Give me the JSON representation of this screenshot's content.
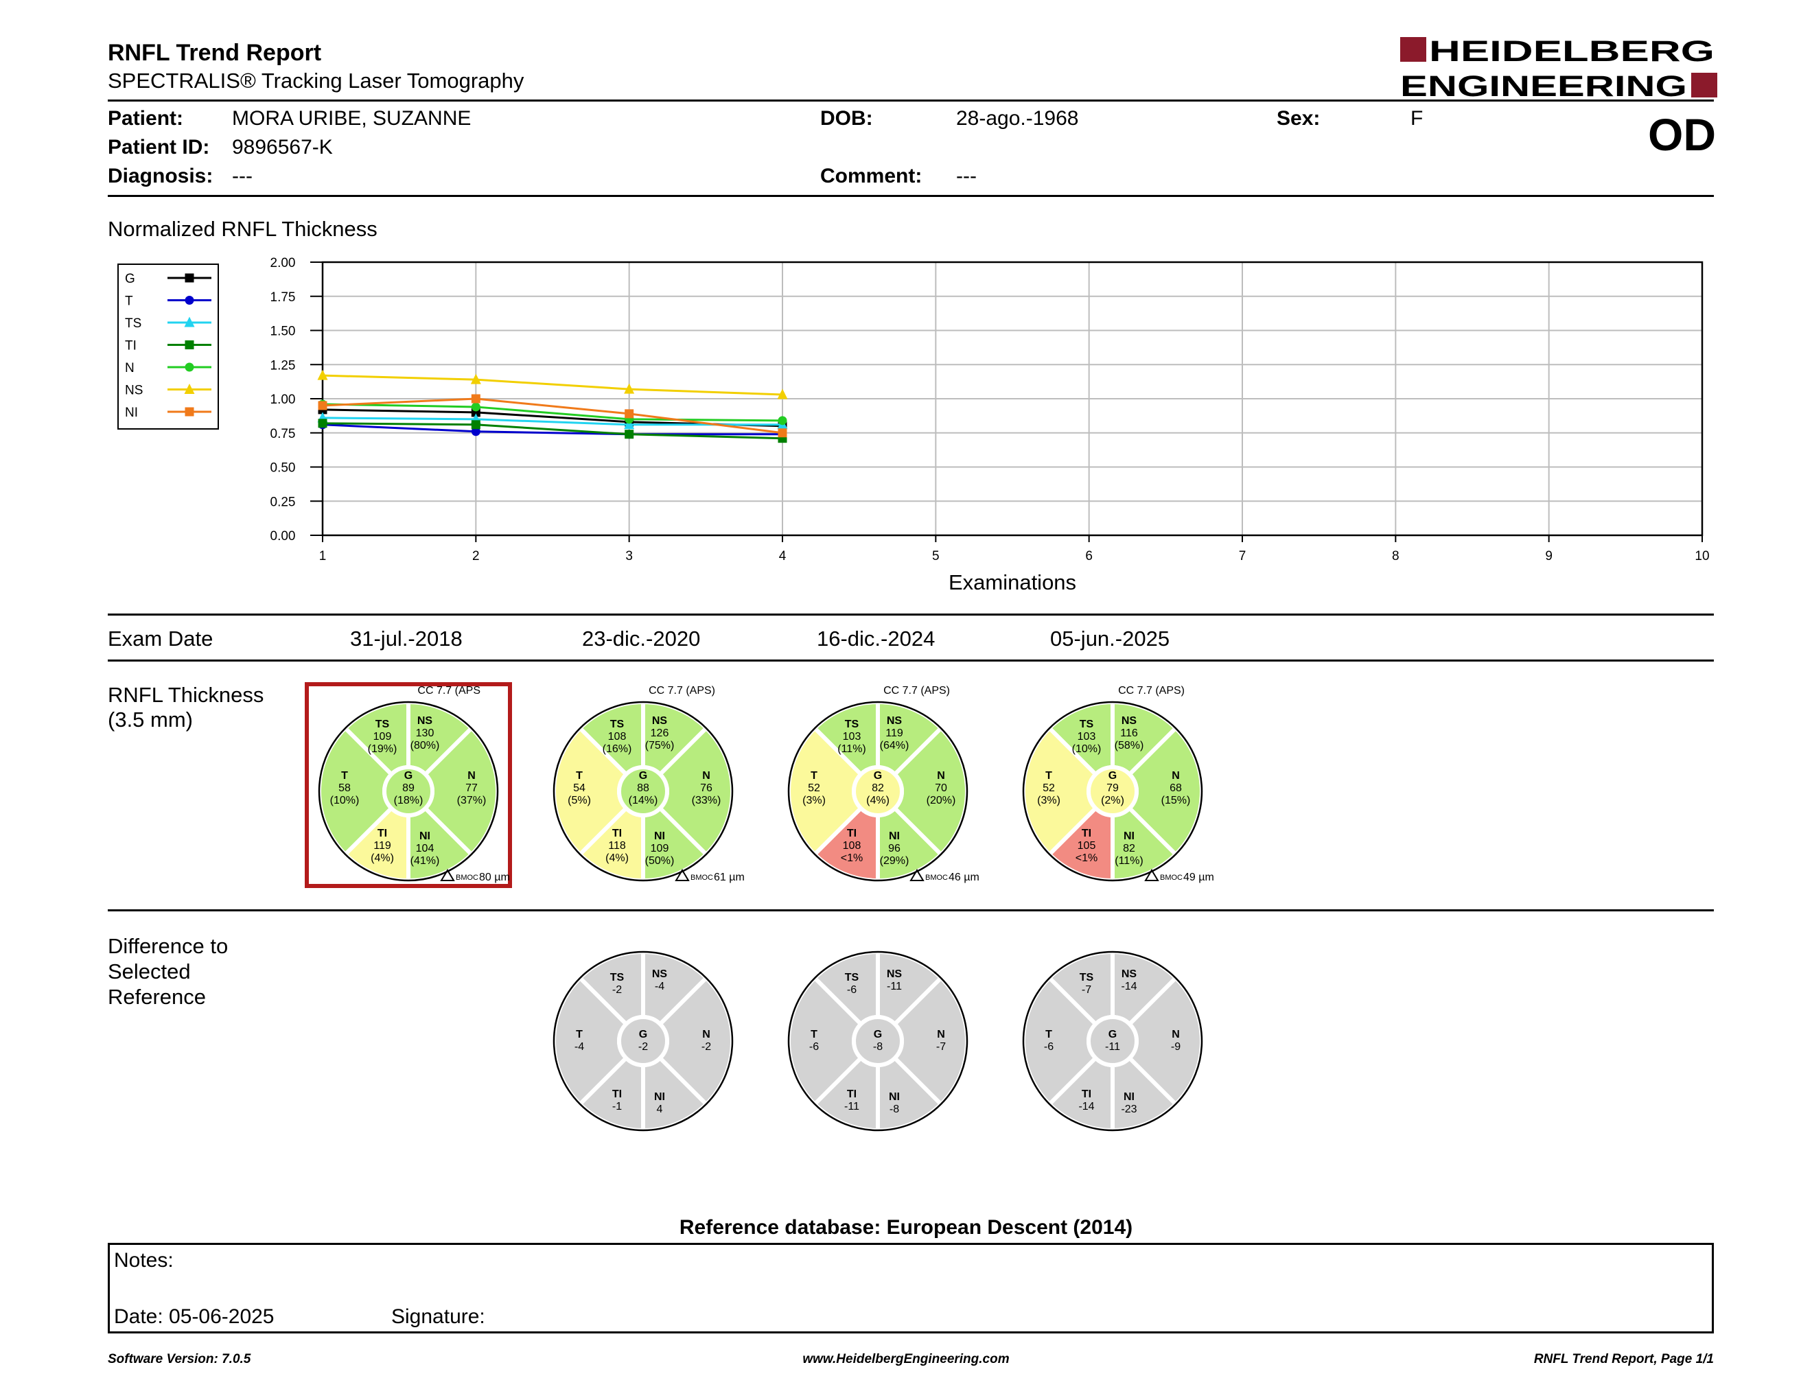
{
  "header": {
    "title": "RNFL Trend Report",
    "subtitle": "SPECTRALIS® Tracking Laser Tomography",
    "logo": {
      "line1": "HEIDELBERG",
      "line2": "ENGINEERING",
      "accent_color": "#8b1a2b"
    },
    "eye": "OD"
  },
  "patient": {
    "patient_label": "Patient:",
    "patient_value": "MORA URIBE, SUZANNE",
    "id_label": "Patient ID:",
    "id_value": "9896567-K",
    "diagnosis_label": "Diagnosis:",
    "diagnosis_value": "---",
    "dob_label": "DOB:",
    "dob_value": "28-ago.-1968",
    "comment_label": "Comment:",
    "comment_value": "---",
    "sex_label": "Sex:",
    "sex_value": "F"
  },
  "chart_section_title": "Normalized RNFL Thickness",
  "chart_data": {
    "type": "line",
    "title": "",
    "xlabel": "Examinations",
    "ylabel": "",
    "x": [
      1,
      2,
      3,
      4
    ],
    "xlim": [
      1,
      10
    ],
    "ylim": [
      0,
      2
    ],
    "xticks": [
      "1",
      "2",
      "3",
      "4",
      "5",
      "6",
      "7",
      "8",
      "9",
      "10"
    ],
    "yticks": [
      "0.00",
      "0.25",
      "0.50",
      "0.75",
      "1.00",
      "1.25",
      "1.50",
      "1.75",
      "2.00"
    ],
    "grid": true,
    "legend": "left",
    "series": [
      {
        "name": "G",
        "color": "#000000",
        "marker": "square",
        "values": [
          0.92,
          0.9,
          0.83,
          0.8
        ]
      },
      {
        "name": "T",
        "color": "#0000cc",
        "marker": "circle",
        "values": [
          0.81,
          0.76,
          0.74,
          0.74
        ]
      },
      {
        "name": "TS",
        "color": "#22d3f0",
        "marker": "triangle",
        "values": [
          0.86,
          0.85,
          0.81,
          0.81
        ]
      },
      {
        "name": "TI",
        "color": "#008000",
        "marker": "square",
        "values": [
          0.82,
          0.81,
          0.74,
          0.71
        ]
      },
      {
        "name": "N",
        "color": "#22cc22",
        "marker": "circle",
        "values": [
          0.96,
          0.94,
          0.85,
          0.84
        ]
      },
      {
        "name": "NS",
        "color": "#f2cf00",
        "marker": "triangle",
        "values": [
          1.17,
          1.14,
          1.07,
          1.03
        ]
      },
      {
        "name": "NI",
        "color": "#f07a1a",
        "marker": "square",
        "values": [
          0.95,
          1.0,
          0.89,
          0.75
        ]
      }
    ]
  },
  "exam_date_label": "Exam Date",
  "thickness_label": [
    "RNFL Thickness",
    "(3.5 mm)"
  ],
  "difference_label": [
    "Difference to",
    "Selected",
    "Reference"
  ],
  "exams": [
    {
      "date": "31-jul.-2018",
      "cc": "CC 7.7 (APS",
      "bmoc": "80 µm",
      "selected": true,
      "sectors": {
        "TS": {
          "value": "109",
          "pct": "(19%)",
          "color": "green"
        },
        "NS": {
          "value": "130",
          "pct": "(80%)",
          "color": "green"
        },
        "T": {
          "value": "58",
          "pct": "(10%)",
          "color": "green"
        },
        "G": {
          "value": "89",
          "pct": "(18%)",
          "color": "green"
        },
        "N": {
          "value": "77",
          "pct": "(37%)",
          "color": "green"
        },
        "TI": {
          "value": "119",
          "pct": "(4%)",
          "color": "yellow"
        },
        "NI": {
          "value": "104",
          "pct": "(41%)",
          "color": "green"
        }
      }
    },
    {
      "date": "23-dic.-2020",
      "cc": "CC 7.7 (APS)",
      "bmoc": "61 µm",
      "selected": false,
      "sectors": {
        "TS": {
          "value": "108",
          "pct": "(16%)",
          "color": "green"
        },
        "NS": {
          "value": "126",
          "pct": "(75%)",
          "color": "green"
        },
        "T": {
          "value": "54",
          "pct": "(5%)",
          "color": "yellow"
        },
        "G": {
          "value": "88",
          "pct": "(14%)",
          "color": "green"
        },
        "N": {
          "value": "76",
          "pct": "(33%)",
          "color": "green"
        },
        "TI": {
          "value": "118",
          "pct": "(4%)",
          "color": "yellow"
        },
        "NI": {
          "value": "109",
          "pct": "(50%)",
          "color": "green"
        }
      },
      "difference": {
        "TS": "-2",
        "NS": "-4",
        "T": "-4",
        "G": "-2",
        "N": "-2",
        "TI": "-1",
        "NI": "4"
      }
    },
    {
      "date": "16-dic.-2024",
      "cc": "CC 7.7 (APS)",
      "bmoc": "46 µm",
      "selected": false,
      "sectors": {
        "TS": {
          "value": "103",
          "pct": "(11%)",
          "color": "green"
        },
        "NS": {
          "value": "119",
          "pct": "(64%)",
          "color": "green"
        },
        "T": {
          "value": "52",
          "pct": "(3%)",
          "color": "yellow"
        },
        "G": {
          "value": "82",
          "pct": "(4%)",
          "color": "yellow"
        },
        "N": {
          "value": "70",
          "pct": "(20%)",
          "color": "green"
        },
        "TI": {
          "value": "108",
          "pct": "<1%",
          "color": "red"
        },
        "NI": {
          "value": "96",
          "pct": "(29%)",
          "color": "green"
        }
      },
      "difference": {
        "TS": "-6",
        "NS": "-11",
        "T": "-6",
        "G": "-8",
        "N": "-7",
        "TI": "-11",
        "NI": "-8"
      }
    },
    {
      "date": "05-jun.-2025",
      "cc": "CC 7.7 (APS)",
      "bmoc": "49 µm",
      "selected": false,
      "sectors": {
        "TS": {
          "value": "103",
          "pct": "(10%)",
          "color": "green"
        },
        "NS": {
          "value": "116",
          "pct": "(58%)",
          "color": "green"
        },
        "T": {
          "value": "52",
          "pct": "(3%)",
          "color": "yellow"
        },
        "G": {
          "value": "79",
          "pct": "(2%)",
          "color": "yellow"
        },
        "N": {
          "value": "68",
          "pct": "(15%)",
          "color": "green"
        },
        "TI": {
          "value": "105",
          "pct": "<1%",
          "color": "red"
        },
        "NI": {
          "value": "82",
          "pct": "(11%)",
          "color": "green"
        }
      },
      "difference": {
        "TS": "-7",
        "NS": "-14",
        "T": "-6",
        "G": "-11",
        "N": "-9",
        "TI": "-14",
        "NI": "-23"
      }
    }
  ],
  "bmoc_label": "BMOC",
  "sector_colors": {
    "green": "#b7ec7e",
    "yellow": "#fbf99b",
    "red": "#f28b82",
    "gray": "#d3d3d3"
  },
  "reference_db": "Reference database: European Descent (2014)",
  "notes": {
    "notes_label": "Notes:",
    "date_label": "Date: 05-06-2025",
    "signature_label": "Signature:"
  },
  "footer": {
    "software": "Software Version: 7.0.5",
    "website": "www.HeidelbergEngineering.com",
    "page": "RNFL Trend Report, Page 1/1"
  }
}
